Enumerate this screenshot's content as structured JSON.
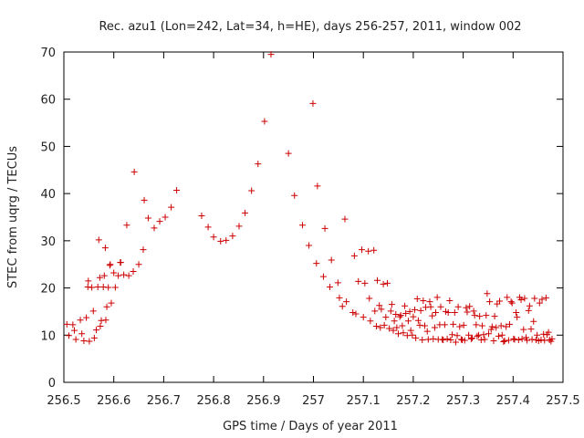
{
  "chart_data": {
    "type": "scatter",
    "title": "Rec. azu1 (Lon=242, Lat=34, h=HE), days 256-257, 2011, window 002",
    "xlabel": "GPS time / Days of year 2011",
    "ylabel": "STEC from uqrg / TECUs",
    "xlim": [
      256.5,
      257.5
    ],
    "ylim": [
      0,
      70
    ],
    "xticks": [
      "256.5",
      "256.6",
      "256.7",
      "256.8",
      "256.9",
      "257",
      "257.1",
      "257.2",
      "257.3",
      "257.4",
      "257.5"
    ],
    "yticks": [
      "0",
      "10",
      "20",
      "30",
      "40",
      "50",
      "60",
      "70"
    ],
    "grid": false,
    "legend": "none",
    "marker": "plus",
    "color": "#cc0000",
    "series": [
      {
        "points": [
          [
            256.506,
            12.3
          ],
          [
            256.51,
            9.9
          ],
          [
            256.518,
            12.2
          ],
          [
            256.521,
            11.0
          ],
          [
            256.524,
            9.1
          ],
          [
            256.533,
            13.2
          ],
          [
            256.536,
            10.3
          ],
          [
            256.54,
            8.8
          ],
          [
            256.545,
            13.7
          ],
          [
            256.548,
            20.2
          ],
          [
            256.549,
            21.5
          ],
          [
            256.551,
            8.7
          ],
          [
            256.556,
            20.1
          ],
          [
            256.559,
            15.1
          ],
          [
            256.561,
            9.4
          ],
          [
            256.565,
            11.1
          ],
          [
            256.568,
            20.2
          ],
          [
            256.57,
            30.2
          ],
          [
            256.572,
            22.2
          ],
          [
            256.573,
            11.9
          ],
          [
            256.575,
            13.1
          ],
          [
            256.579,
            20.2
          ],
          [
            256.581,
            22.6
          ],
          [
            256.583,
            28.5
          ],
          [
            256.584,
            13.2
          ],
          [
            256.586,
            16.0
          ],
          [
            256.589,
            20.1
          ],
          [
            256.592,
            24.8
          ],
          [
            256.593,
            25.0
          ],
          [
            256.595,
            16.8
          ],
          [
            256.6,
            23.2
          ],
          [
            256.603,
            20.1
          ],
          [
            256.609,
            22.6
          ],
          [
            256.613,
            25.4
          ],
          [
            256.614,
            25.4
          ],
          [
            256.62,
            22.8
          ],
          [
            256.626,
            33.3
          ],
          [
            256.63,
            22.6
          ],
          [
            256.639,
            23.5
          ],
          [
            256.641,
            44.6
          ],
          [
            256.65,
            25.0
          ],
          [
            256.659,
            28.1
          ],
          [
            256.661,
            38.6
          ],
          [
            256.669,
            34.8
          ],
          [
            256.681,
            32.7
          ],
          [
            256.692,
            34.1
          ],
          [
            256.703,
            35.0
          ],
          [
            256.715,
            37.1
          ],
          [
            256.726,
            40.7
          ],
          [
            256.776,
            35.3
          ],
          [
            256.789,
            32.9
          ],
          [
            256.8,
            30.8
          ],
          [
            256.814,
            29.9
          ],
          [
            256.825,
            30.1
          ],
          [
            256.838,
            31.0
          ],
          [
            256.851,
            33.1
          ],
          [
            256.863,
            35.9
          ],
          [
            256.876,
            40.6
          ],
          [
            256.889,
            46.3
          ],
          [
            256.902,
            55.3
          ],
          [
            256.915,
            69.5
          ],
          [
            256.95,
            48.5
          ],
          [
            256.962,
            39.6
          ],
          [
            256.978,
            33.3
          ],
          [
            256.991,
            29.0
          ],
          [
            256.999,
            59.1
          ],
          [
            257.006,
            25.2
          ],
          [
            257.008,
            41.6
          ],
          [
            257.02,
            22.4
          ],
          [
            257.023,
            32.6
          ],
          [
            257.033,
            20.2
          ],
          [
            257.036,
            25.9
          ],
          [
            257.049,
            21.1
          ],
          [
            257.052,
            17.9
          ],
          [
            257.058,
            16.1
          ],
          [
            257.063,
            34.6
          ],
          [
            257.066,
            17.1
          ],
          [
            257.079,
            14.8
          ],
          [
            257.082,
            26.8
          ],
          [
            257.085,
            14.5
          ],
          [
            257.09,
            21.4
          ],
          [
            257.097,
            28.1
          ],
          [
            257.1,
            13.8
          ],
          [
            257.103,
            21.0
          ],
          [
            257.11,
            27.8
          ],
          [
            257.112,
            17.8
          ],
          [
            257.114,
            13.0
          ],
          [
            257.121,
            28.0
          ],
          [
            257.123,
            15.1
          ],
          [
            257.126,
            11.9
          ],
          [
            257.128,
            21.6
          ],
          [
            257.132,
            16.3
          ],
          [
            257.134,
            11.6
          ],
          [
            257.136,
            15.5
          ],
          [
            257.14,
            20.8
          ],
          [
            257.142,
            12.1
          ],
          [
            257.145,
            13.8
          ],
          [
            257.148,
            21.0
          ],
          [
            257.152,
            11.4
          ],
          [
            257.155,
            15.1
          ],
          [
            257.157,
            16.5
          ],
          [
            257.16,
            11.0
          ],
          [
            257.162,
            13.0
          ],
          [
            257.165,
            14.4
          ],
          [
            257.167,
            11.6
          ],
          [
            257.17,
            10.3
          ],
          [
            257.173,
            13.9
          ],
          [
            257.175,
            14.2
          ],
          [
            257.178,
            12.0
          ],
          [
            257.18,
            10.5
          ],
          [
            257.183,
            16.2
          ],
          [
            257.185,
            14.6
          ],
          [
            257.188,
            9.9
          ],
          [
            257.19,
            13.0
          ],
          [
            257.193,
            15.0
          ],
          [
            257.195,
            11.0
          ],
          [
            257.198,
            10.0
          ],
          [
            257.2,
            13.9
          ],
          [
            257.203,
            15.4
          ],
          [
            257.205,
            9.4
          ],
          [
            257.208,
            17.7
          ],
          [
            257.21,
            13.1
          ],
          [
            257.213,
            12.1
          ],
          [
            257.215,
            15.2
          ],
          [
            257.218,
            9.0
          ],
          [
            257.22,
            17.3
          ],
          [
            257.223,
            12.0
          ],
          [
            257.225,
            15.9
          ],
          [
            257.228,
            10.8
          ],
          [
            257.23,
            9.1
          ],
          [
            257.233,
            17.1
          ],
          [
            257.235,
            16.0
          ],
          [
            257.238,
            14.1
          ],
          [
            257.24,
            9.2
          ],
          [
            257.243,
            11.6
          ],
          [
            257.245,
            14.8
          ],
          [
            257.248,
            18.0
          ],
          [
            257.25,
            9.1
          ],
          [
            257.253,
            12.2
          ],
          [
            257.255,
            16.0
          ],
          [
            257.258,
            9.1
          ],
          [
            257.26,
            9.0
          ],
          [
            257.263,
            12.2
          ],
          [
            257.265,
            15.0
          ],
          [
            257.268,
            9.2
          ],
          [
            257.27,
            14.8
          ],
          [
            257.273,
            17.3
          ],
          [
            257.275,
            9.0
          ],
          [
            257.278,
            10.1
          ],
          [
            257.28,
            12.3
          ],
          [
            257.283,
            14.8
          ],
          [
            257.285,
            8.5
          ],
          [
            257.288,
            9.9
          ],
          [
            257.29,
            16.0
          ],
          [
            257.293,
            11.8
          ],
          [
            257.296,
            9.1
          ],
          [
            257.298,
            9.0
          ],
          [
            257.301,
            12.1
          ],
          [
            257.303,
            8.9
          ],
          [
            257.306,
            15.8
          ],
          [
            257.308,
            14.9
          ],
          [
            257.311,
            10.0
          ],
          [
            257.313,
            16.1
          ],
          [
            257.316,
            9.2
          ],
          [
            257.318,
            9.4
          ],
          [
            257.321,
            15.1
          ],
          [
            257.323,
            14.2
          ],
          [
            257.326,
            12.2
          ],
          [
            257.328,
            9.8
          ],
          [
            257.331,
            10.0
          ],
          [
            257.333,
            14.0
          ],
          [
            257.336,
            9.0
          ],
          [
            257.338,
            12.0
          ],
          [
            257.341,
            10.1
          ],
          [
            257.343,
            9.1
          ],
          [
            257.346,
            14.2
          ],
          [
            257.348,
            18.8
          ],
          [
            257.351,
            10.3
          ],
          [
            257.353,
            17.1
          ],
          [
            257.356,
            11.2
          ],
          [
            257.358,
            11.8
          ],
          [
            257.361,
            8.8
          ],
          [
            257.363,
            14.0
          ],
          [
            257.366,
            11.6
          ],
          [
            257.368,
            16.6
          ],
          [
            257.371,
            9.8
          ],
          [
            257.373,
            17.2
          ],
          [
            257.376,
            12.0
          ],
          [
            257.378,
            10.0
          ],
          [
            257.381,
            8.6
          ],
          [
            257.383,
            8.8
          ],
          [
            257.386,
            11.8
          ],
          [
            257.388,
            18.0
          ],
          [
            257.391,
            8.9
          ],
          [
            257.393,
            12.3
          ],
          [
            257.396,
            17.1
          ],
          [
            257.398,
            16.8
          ],
          [
            257.401,
            9.2
          ],
          [
            257.403,
            9.1
          ],
          [
            257.406,
            14.8
          ],
          [
            257.408,
            13.8
          ],
          [
            257.411,
            9.0
          ],
          [
            257.413,
            18.0
          ],
          [
            257.416,
            17.5
          ],
          [
            257.418,
            9.2
          ],
          [
            257.421,
            11.2
          ],
          [
            257.423,
            17.8
          ],
          [
            257.426,
            9.5
          ],
          [
            257.428,
            8.9
          ],
          [
            257.431,
            15.2
          ],
          [
            257.433,
            16.2
          ],
          [
            257.436,
            11.3
          ],
          [
            257.438,
            9.1
          ],
          [
            257.441,
            12.9
          ],
          [
            257.443,
            17.8
          ],
          [
            257.446,
            9.0
          ],
          [
            257.448,
            10.0
          ],
          [
            257.451,
            8.8
          ],
          [
            257.453,
            16.8
          ],
          [
            257.456,
            9.0
          ],
          [
            257.458,
            17.6
          ],
          [
            257.461,
            10.2
          ],
          [
            257.463,
            8.9
          ],
          [
            257.466,
            17.9
          ],
          [
            257.468,
            10.1
          ],
          [
            257.471,
            10.6
          ],
          [
            257.473,
            9.0
          ],
          [
            257.476,
            8.7
          ],
          [
            257.478,
            9.2
          ]
        ]
      }
    ]
  }
}
